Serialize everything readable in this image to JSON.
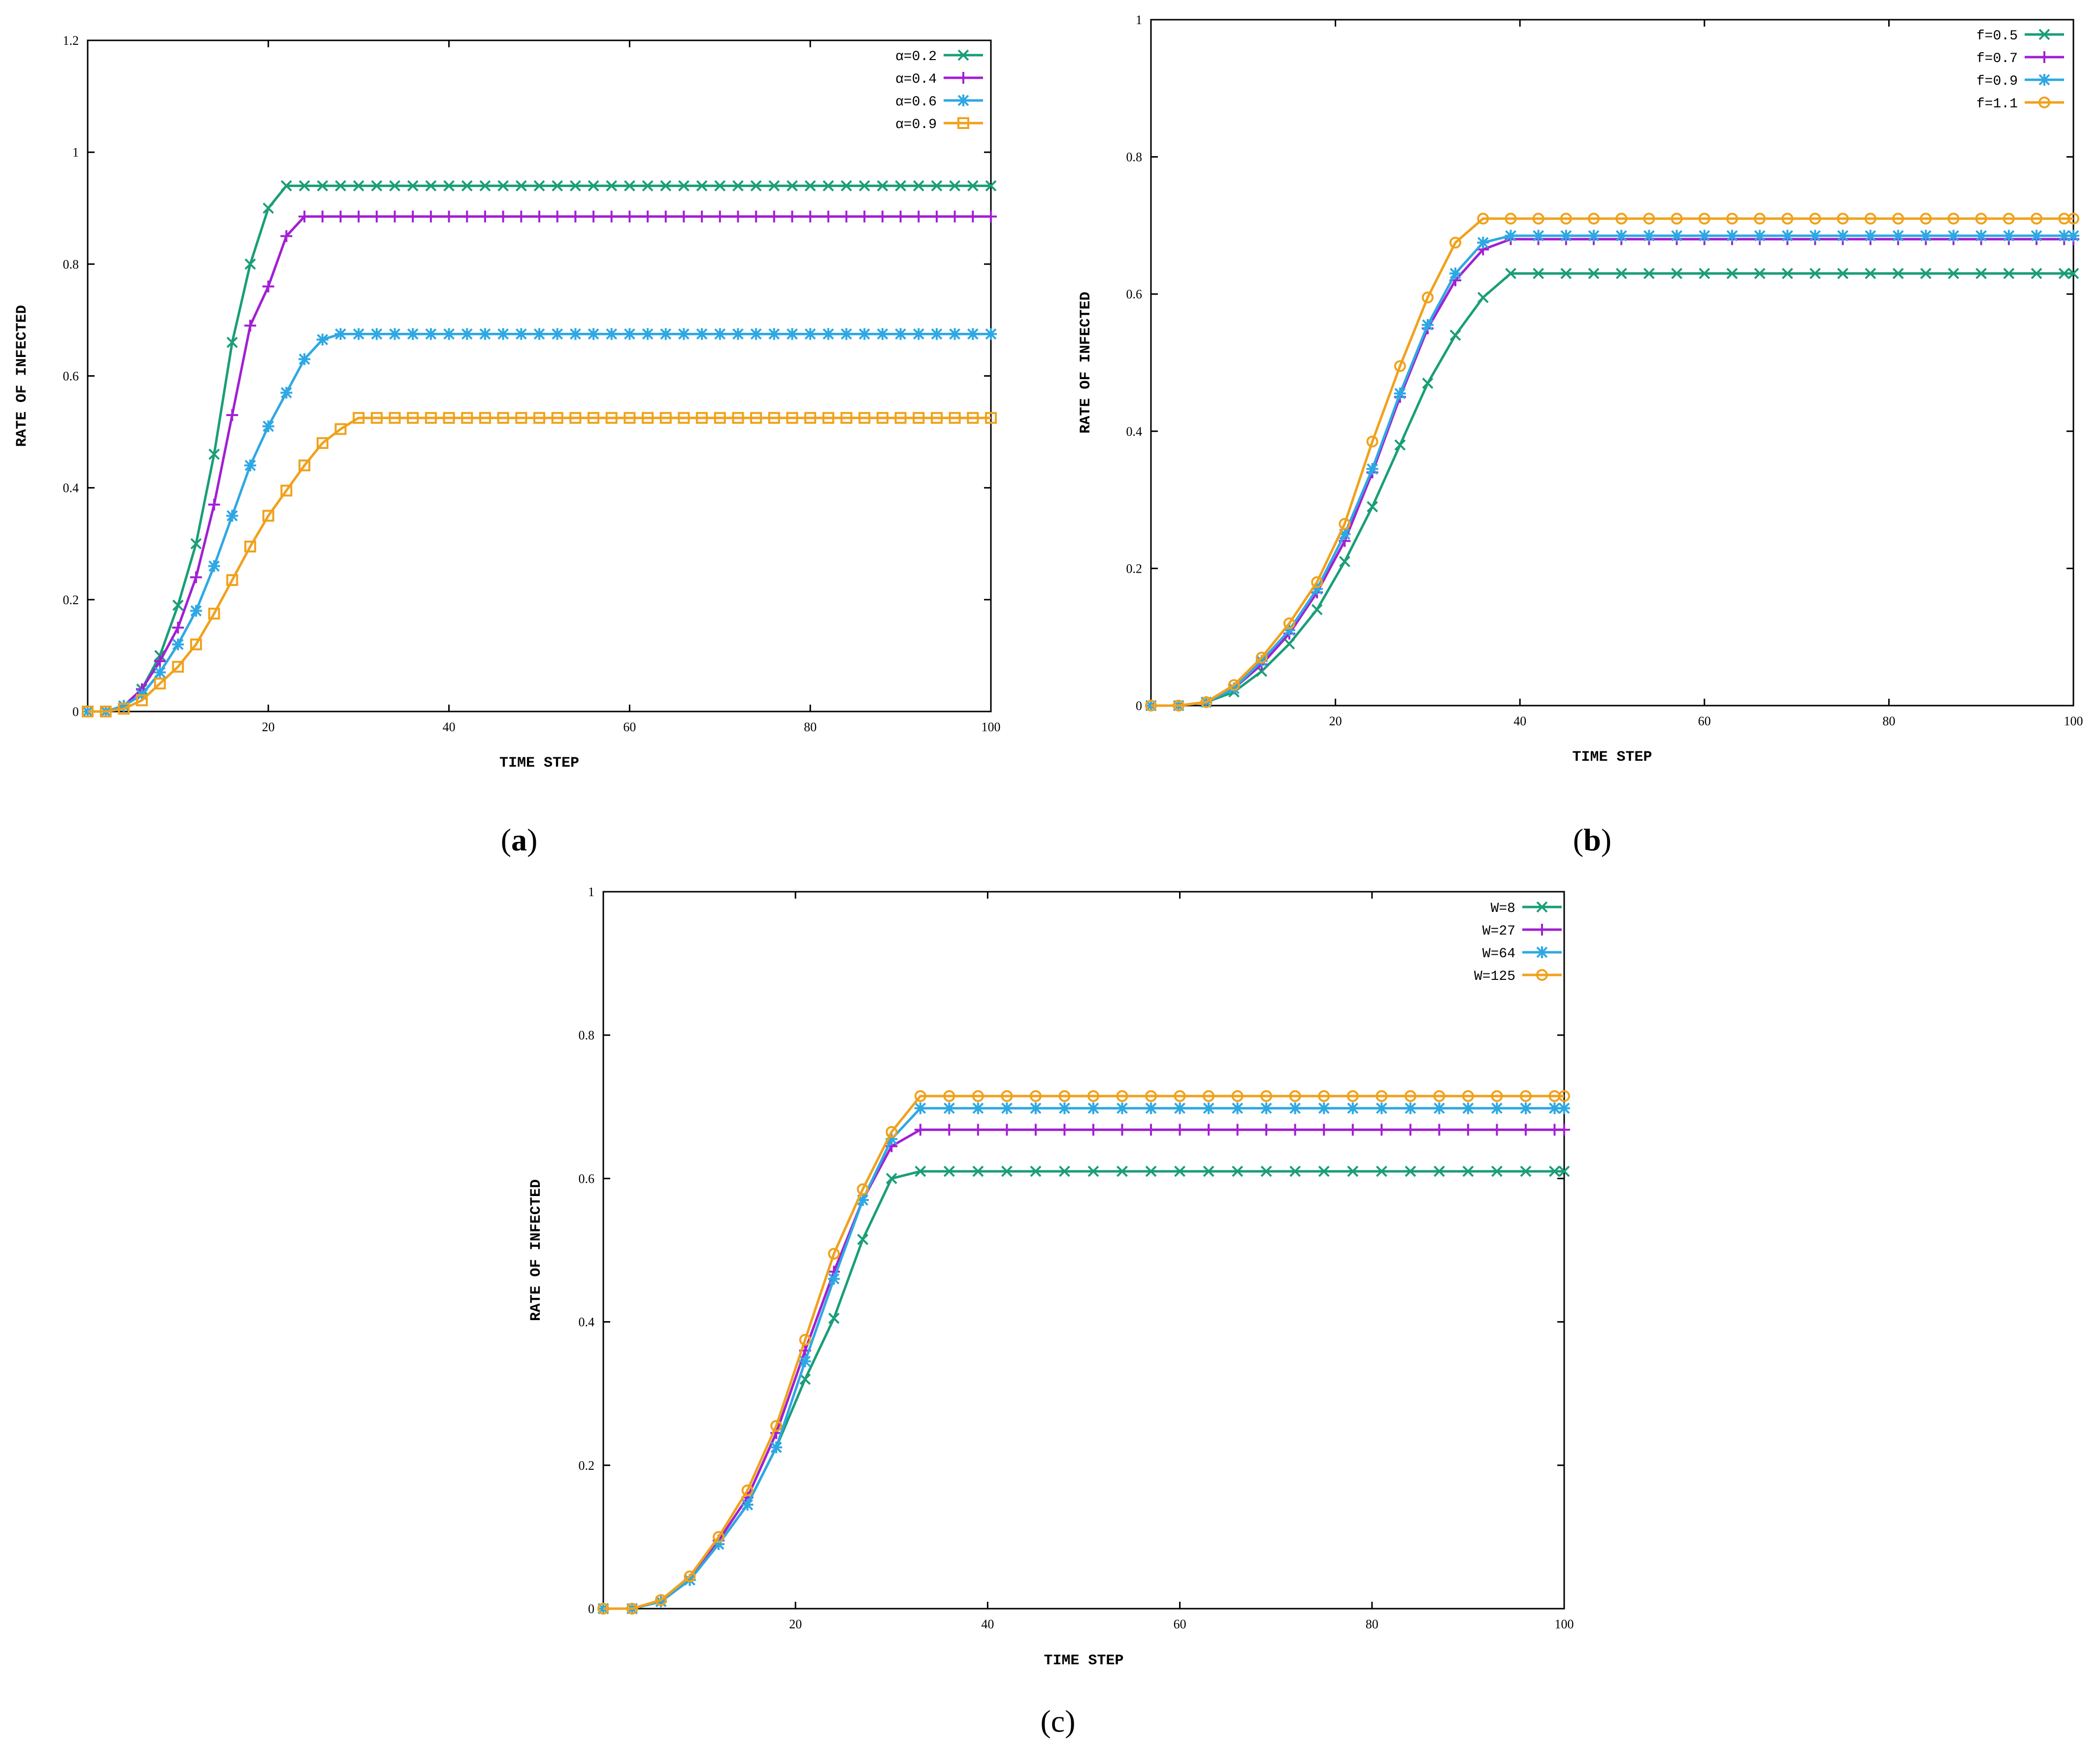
{
  "colors": {
    "series1": "#1a9e77",
    "series2": "#a21fd3",
    "series3": "#2ea8e4",
    "series4": "#f0a11c"
  },
  "chart_data": [
    {
      "type": "line",
      "panel": "a",
      "caption": {
        "open": "(",
        "letter": "a",
        "close": ")"
      },
      "xlabel": "TIME STEP",
      "ylabel": "RATE OF INFECTED",
      "xlim": [
        0,
        100
      ],
      "ylim": [
        0,
        1.2
      ],
      "xticks": [
        "20",
        "40",
        "60",
        "80",
        "100"
      ],
      "yticks": [
        "0",
        "0.2",
        "0.4",
        "0.6",
        "0.8",
        "1",
        "1.2"
      ],
      "legend_position": "top-right",
      "x": [
        0,
        2,
        4,
        6,
        8,
        10,
        12,
        14,
        16,
        18,
        20,
        22,
        24,
        26,
        28,
        30,
        32,
        34,
        36,
        38,
        40,
        42,
        44,
        46,
        48,
        50,
        52,
        54,
        56,
        58,
        60,
        62,
        64,
        66,
        68,
        70,
        72,
        74,
        76,
        78,
        80,
        82,
        84,
        86,
        88,
        90,
        92,
        94,
        96,
        98,
        100
      ],
      "series": [
        {
          "name": "α=0.2",
          "marker": "x",
          "values": [
            0,
            0,
            0.01,
            0.04,
            0.1,
            0.19,
            0.3,
            0.46,
            0.66,
            0.8,
            0.9,
            0.94,
            0.94,
            0.94,
            0.94,
            0.94,
            0.94,
            0.94,
            0.94,
            0.94,
            0.94,
            0.94,
            0.94,
            0.94,
            0.94,
            0.94,
            0.94,
            0.94,
            0.94,
            0.94,
            0.94,
            0.94,
            0.94,
            0.94,
            0.94,
            0.94,
            0.94,
            0.94,
            0.94,
            0.94,
            0.94,
            0.94,
            0.94,
            0.94,
            0.94,
            0.94,
            0.94,
            0.94,
            0.94,
            0.94,
            0.94
          ]
        },
        {
          "name": "α=0.4",
          "marker": "plus",
          "values": [
            0,
            0,
            0.01,
            0.04,
            0.09,
            0.15,
            0.24,
            0.37,
            0.53,
            0.69,
            0.76,
            0.85,
            0.885,
            0.885,
            0.885,
            0.885,
            0.885,
            0.885,
            0.885,
            0.885,
            0.885,
            0.885,
            0.885,
            0.885,
            0.885,
            0.885,
            0.885,
            0.885,
            0.885,
            0.885,
            0.885,
            0.885,
            0.885,
            0.885,
            0.885,
            0.885,
            0.885,
            0.885,
            0.885,
            0.885,
            0.885,
            0.885,
            0.885,
            0.885,
            0.885,
            0.885,
            0.885,
            0.885,
            0.885,
            0.885,
            0.885
          ]
        },
        {
          "name": "α=0.6",
          "marker": "star",
          "values": [
            0,
            0,
            0.01,
            0.03,
            0.07,
            0.12,
            0.18,
            0.26,
            0.35,
            0.44,
            0.51,
            0.57,
            0.63,
            0.665,
            0.675,
            0.675,
            0.675,
            0.675,
            0.675,
            0.675,
            0.675,
            0.675,
            0.675,
            0.675,
            0.675,
            0.675,
            0.675,
            0.675,
            0.675,
            0.675,
            0.675,
            0.675,
            0.675,
            0.675,
            0.675,
            0.675,
            0.675,
            0.675,
            0.675,
            0.675,
            0.675,
            0.675,
            0.675,
            0.675,
            0.675,
            0.675,
            0.675,
            0.675,
            0.675,
            0.675,
            0.675
          ]
        },
        {
          "name": "α=0.9",
          "marker": "square",
          "values": [
            0,
            0,
            0.005,
            0.02,
            0.05,
            0.08,
            0.12,
            0.175,
            0.235,
            0.295,
            0.35,
            0.395,
            0.44,
            0.48,
            0.505,
            0.525,
            0.525,
            0.525,
            0.525,
            0.525,
            0.525,
            0.525,
            0.525,
            0.525,
            0.525,
            0.525,
            0.525,
            0.525,
            0.525,
            0.525,
            0.525,
            0.525,
            0.525,
            0.525,
            0.525,
            0.525,
            0.525,
            0.525,
            0.525,
            0.525,
            0.525,
            0.525,
            0.525,
            0.525,
            0.525,
            0.525,
            0.525,
            0.525,
            0.525,
            0.525,
            0.525
          ]
        }
      ]
    },
    {
      "type": "line",
      "panel": "b",
      "caption": {
        "open": "(",
        "letter": "b",
        "close": ")"
      },
      "xlabel": "TIME STEP",
      "ylabel": "RATE OF INFECTED",
      "xlim": [
        0,
        100
      ],
      "ylim": [
        0,
        1
      ],
      "xticks": [
        "20",
        "40",
        "60",
        "80",
        "100"
      ],
      "yticks": [
        "0",
        "0.2",
        "0.4",
        "0.6",
        "0.8",
        "1"
      ],
      "legend_position": "top-right",
      "x": [
        0,
        3,
        6,
        9,
        12,
        15,
        18,
        21,
        24,
        27,
        30,
        33,
        36,
        39,
        42,
        45,
        48,
        51,
        54,
        57,
        60,
        63,
        66,
        69,
        72,
        75,
        78,
        81,
        84,
        87,
        90,
        93,
        96,
        99,
        100
      ],
      "series": [
        {
          "name": "f=0.5",
          "marker": "x",
          "values": [
            0,
            0,
            0.005,
            0.02,
            0.05,
            0.09,
            0.14,
            0.21,
            0.29,
            0.38,
            0.47,
            0.54,
            0.595,
            0.63,
            0.63,
            0.63,
            0.63,
            0.63,
            0.63,
            0.63,
            0.63,
            0.63,
            0.63,
            0.63,
            0.63,
            0.63,
            0.63,
            0.63,
            0.63,
            0.63,
            0.63,
            0.63,
            0.63,
            0.63,
            0.63
          ]
        },
        {
          "name": "f=0.7",
          "marker": "plus",
          "values": [
            0,
            0,
            0.005,
            0.025,
            0.06,
            0.105,
            0.165,
            0.24,
            0.34,
            0.45,
            0.55,
            0.62,
            0.665,
            0.68,
            0.68,
            0.68,
            0.68,
            0.68,
            0.68,
            0.68,
            0.68,
            0.68,
            0.68,
            0.68,
            0.68,
            0.68,
            0.68,
            0.68,
            0.68,
            0.68,
            0.68,
            0.68,
            0.68,
            0.68,
            0.68
          ]
        },
        {
          "name": "f=0.9",
          "marker": "star",
          "values": [
            0,
            0,
            0.005,
            0.025,
            0.065,
            0.11,
            0.17,
            0.25,
            0.345,
            0.455,
            0.555,
            0.63,
            0.675,
            0.685,
            0.685,
            0.685,
            0.685,
            0.685,
            0.685,
            0.685,
            0.685,
            0.685,
            0.685,
            0.685,
            0.685,
            0.685,
            0.685,
            0.685,
            0.685,
            0.685,
            0.685,
            0.685,
            0.685,
            0.685,
            0.685
          ]
        },
        {
          "name": "f=1.1",
          "marker": "circle",
          "values": [
            0,
            0,
            0.005,
            0.03,
            0.07,
            0.12,
            0.18,
            0.265,
            0.385,
            0.495,
            0.595,
            0.675,
            0.71,
            0.71,
            0.71,
            0.71,
            0.71,
            0.71,
            0.71,
            0.71,
            0.71,
            0.71,
            0.71,
            0.71,
            0.71,
            0.71,
            0.71,
            0.71,
            0.71,
            0.71,
            0.71,
            0.71,
            0.71,
            0.71,
            0.71
          ]
        }
      ]
    },
    {
      "type": "line",
      "panel": "c",
      "caption": {
        "open": "(",
        "letter": "c",
        "close": ")"
      },
      "xlabel": "TIME STEP",
      "ylabel": "RATE OF INFECTED",
      "xlim": [
        0,
        100
      ],
      "ylim": [
        0,
        1
      ],
      "xticks": [
        "20",
        "40",
        "60",
        "80",
        "100"
      ],
      "yticks": [
        "0",
        "0.2",
        "0.4",
        "0.6",
        "0.8",
        "1"
      ],
      "legend_position": "top-right",
      "x": [
        0,
        3,
        6,
        9,
        12,
        15,
        18,
        21,
        24,
        27,
        30,
        33,
        36,
        39,
        42,
        45,
        48,
        51,
        54,
        57,
        60,
        63,
        66,
        69,
        72,
        75,
        78,
        81,
        84,
        87,
        90,
        93,
        96,
        99,
        100
      ],
      "series": [
        {
          "name": "W=8",
          "marker": "x",
          "values": [
            0,
            0,
            0.01,
            0.04,
            0.09,
            0.145,
            0.225,
            0.32,
            0.405,
            0.515,
            0.6,
            0.61,
            0.61,
            0.61,
            0.61,
            0.61,
            0.61,
            0.61,
            0.61,
            0.61,
            0.61,
            0.61,
            0.61,
            0.61,
            0.61,
            0.61,
            0.61,
            0.61,
            0.61,
            0.61,
            0.61,
            0.61,
            0.61,
            0.61,
            0.61
          ]
        },
        {
          "name": "W=27",
          "marker": "plus",
          "values": [
            0,
            0,
            0.01,
            0.04,
            0.095,
            0.155,
            0.245,
            0.36,
            0.47,
            0.57,
            0.645,
            0.668,
            0.668,
            0.668,
            0.668,
            0.668,
            0.668,
            0.668,
            0.668,
            0.668,
            0.668,
            0.668,
            0.668,
            0.668,
            0.668,
            0.668,
            0.668,
            0.668,
            0.668,
            0.668,
            0.668,
            0.668,
            0.668,
            0.668,
            0.668
          ]
        },
        {
          "name": "W=64",
          "marker": "star",
          "values": [
            0,
            0,
            0.01,
            0.04,
            0.09,
            0.145,
            0.225,
            0.345,
            0.46,
            0.57,
            0.655,
            0.698,
            0.698,
            0.698,
            0.698,
            0.698,
            0.698,
            0.698,
            0.698,
            0.698,
            0.698,
            0.698,
            0.698,
            0.698,
            0.698,
            0.698,
            0.698,
            0.698,
            0.698,
            0.698,
            0.698,
            0.698,
            0.698,
            0.698,
            0.698
          ]
        },
        {
          "name": "W=125",
          "marker": "circle",
          "values": [
            0,
            0,
            0.012,
            0.045,
            0.1,
            0.165,
            0.255,
            0.375,
            0.495,
            0.585,
            0.665,
            0.715,
            0.715,
            0.715,
            0.715,
            0.715,
            0.715,
            0.715,
            0.715,
            0.715,
            0.715,
            0.715,
            0.715,
            0.715,
            0.715,
            0.715,
            0.715,
            0.715,
            0.715,
            0.715,
            0.715,
            0.715,
            0.715,
            0.715,
            0.715
          ]
        }
      ]
    }
  ]
}
